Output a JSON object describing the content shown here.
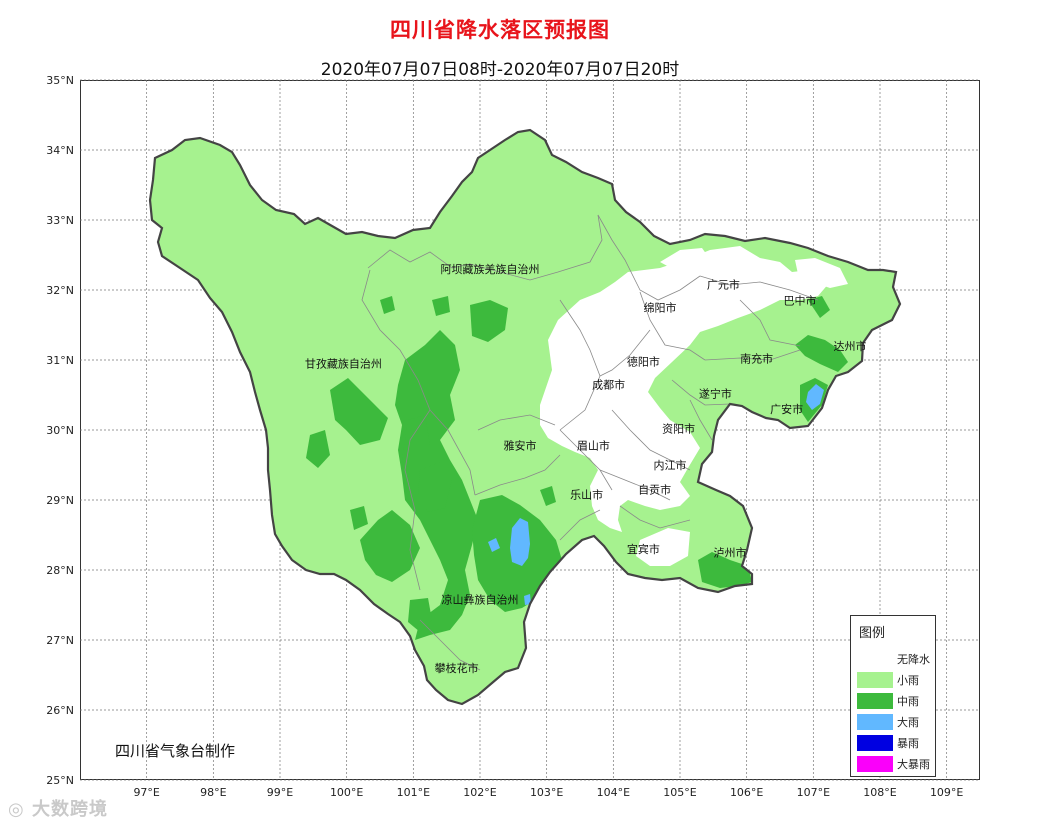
{
  "title": "四川省降水落区预报图",
  "subtitle": "2020年07月07日08时-2020年07月07日20时",
  "credit": "四川省气象台制作",
  "watermark": "大数跨境",
  "lat_ticks": [
    "35°N",
    "34°N",
    "33°N",
    "32°N",
    "31°N",
    "30°N",
    "29°N",
    "28°N",
    "27°N",
    "26°N",
    "25°N"
  ],
  "lon_ticks": [
    "97°E",
    "98°E",
    "99°E",
    "100°E",
    "101°E",
    "102°E",
    "103°E",
    "104°E",
    "105°E",
    "106°E",
    "107°E",
    "108°E",
    "109°E"
  ],
  "cities": [
    {
      "name": "阿坝藏族羌族自治州",
      "lon": 102.15,
      "lat": 32.3
    },
    {
      "name": "甘孜藏族自治州",
      "lon": 99.95,
      "lat": 30.95
    },
    {
      "name": "广元市",
      "lon": 105.65,
      "lat": 32.08
    },
    {
      "name": "巴中市",
      "lon": 106.8,
      "lat": 31.85
    },
    {
      "name": "绵阳市",
      "lon": 104.7,
      "lat": 31.75
    },
    {
      "name": "达州市",
      "lon": 107.55,
      "lat": 31.2
    },
    {
      "name": "德阳市",
      "lon": 104.45,
      "lat": 30.98
    },
    {
      "name": "南充市",
      "lon": 106.15,
      "lat": 31.02
    },
    {
      "name": "成都市",
      "lon": 103.93,
      "lat": 30.65
    },
    {
      "name": "遂宁市",
      "lon": 105.53,
      "lat": 30.52
    },
    {
      "name": "广安市",
      "lon": 106.6,
      "lat": 30.3
    },
    {
      "name": "资阳市",
      "lon": 104.98,
      "lat": 30.02
    },
    {
      "name": "雅安市",
      "lon": 102.6,
      "lat": 29.78
    },
    {
      "name": "眉山市",
      "lon": 103.7,
      "lat": 29.78
    },
    {
      "name": "内江市",
      "lon": 104.85,
      "lat": 29.5
    },
    {
      "name": "自贡市",
      "lon": 104.62,
      "lat": 29.15
    },
    {
      "name": "乐山市",
      "lon": 103.6,
      "lat": 29.08
    },
    {
      "name": "宜宾市",
      "lon": 104.45,
      "lat": 28.3
    },
    {
      "name": "泸州市",
      "lon": 105.75,
      "lat": 28.25
    },
    {
      "name": "凉山彝族自治州",
      "lon": 102.0,
      "lat": 27.58
    },
    {
      "name": "攀枝花市",
      "lon": 101.65,
      "lat": 26.6
    }
  ],
  "legend": {
    "title": "图例",
    "items": [
      {
        "label": "无降水",
        "color": "#ffffff"
      },
      {
        "label": "小雨",
        "color": "#a6f28f"
      },
      {
        "label": "中雨",
        "color": "#3dba3d"
      },
      {
        "label": "大雨",
        "color": "#61b8ff"
      },
      {
        "label": "暴雨",
        "color": "#0000e1"
      },
      {
        "label": "大暴雨",
        "color": "#fa00fa"
      }
    ]
  }
}
